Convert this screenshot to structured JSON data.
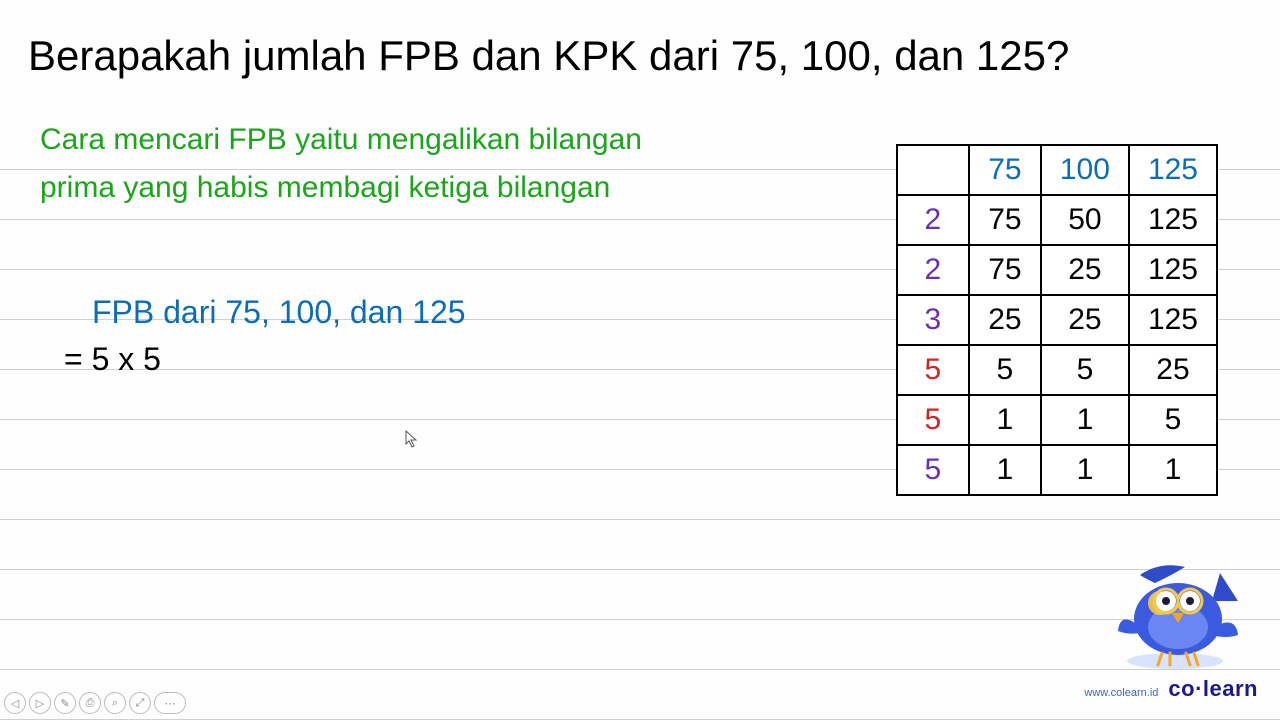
{
  "title": "Berapakah jumlah FPB dan KPK dari 75, 100, dan 125?",
  "explain_line1": "Cara mencari FPB yaitu mengalikan bilangan",
  "explain_line2": "prima yang habis membagi ketiga bilangan",
  "fpb": {
    "heading": "FPB dari 75, 100, dan 125",
    "equation": "= 5 x 5"
  },
  "table": {
    "header": [
      "",
      "75",
      "100",
      "125"
    ],
    "rows": [
      {
        "prime": "2",
        "prime_color": "#6a2fb8",
        "vals": [
          "75",
          "50",
          "125"
        ]
      },
      {
        "prime": "2",
        "prime_color": "#6a2fb8",
        "vals": [
          "75",
          "25",
          "125"
        ]
      },
      {
        "prime": "3",
        "prime_color": "#6a2fb8",
        "vals": [
          "25",
          "25",
          "125"
        ]
      },
      {
        "prime": "5",
        "prime_color": "#d22424",
        "vals": [
          "5",
          "5",
          "25"
        ]
      },
      {
        "prime": "5",
        "prime_color": "#d22424",
        "vals": [
          "1",
          "1",
          "5"
        ]
      },
      {
        "prime": "5",
        "prime_color": "#6a2fb8",
        "vals": [
          "1",
          "1",
          "1"
        ]
      }
    ]
  },
  "brand": {
    "url": "www.colearn.id",
    "logo_left": "co",
    "logo_right": "learn"
  },
  "colors": {
    "title": "#000000",
    "explain": "#1aa61a",
    "fpb_heading": "#0b6db8",
    "fpb_equation": "#000000",
    "table_border": "#000000",
    "header_text": "#0b6db8",
    "ruled_line": "#d0d0d0",
    "background": "#ffffff"
  },
  "toolbar_icons": [
    "◁",
    "▷",
    "✎",
    "⎙",
    "⌕",
    "⤢",
    "⋯"
  ]
}
